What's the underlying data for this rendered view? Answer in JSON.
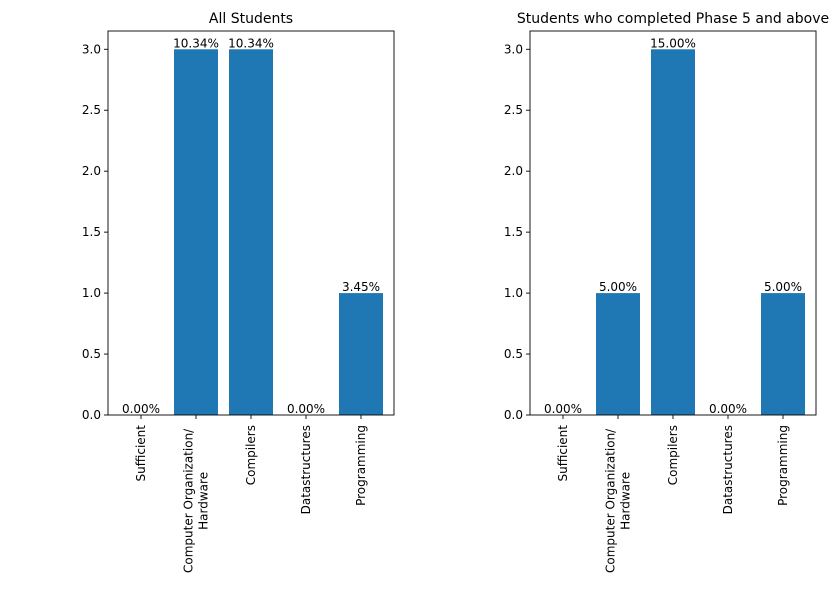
{
  "chart_data": [
    {
      "type": "bar",
      "title": "All Students",
      "categories": [
        "Sufficient",
        "Computer Organization/\nHardware",
        "Compilers",
        "Datastructures",
        "Programming"
      ],
      "values": [
        0,
        3,
        3,
        0,
        1
      ],
      "bar_labels": [
        "0.00%",
        "10.34%",
        "10.34%",
        "0.00%",
        "3.45%"
      ],
      "yticks": [
        "0.0",
        "0.5",
        "1.0",
        "1.5",
        "2.0",
        "2.5",
        "3.0"
      ],
      "ylim": [
        0,
        3.15
      ],
      "xlabel": "",
      "ylabel": "",
      "grid": false,
      "bar_color": "#1f77b4"
    },
    {
      "type": "bar",
      "title": "Students who completed Phase 5 and above",
      "categories": [
        "Sufficient",
        "Computer Organization/\nHardware",
        "Compilers",
        "Datastructures",
        "Programming"
      ],
      "values": [
        0,
        1,
        3,
        0,
        1
      ],
      "bar_labels": [
        "0.00%",
        "5.00%",
        "15.00%",
        "0.00%",
        "5.00%"
      ],
      "yticks": [
        "0.0",
        "0.5",
        "1.0",
        "1.5",
        "2.0",
        "2.5",
        "3.0"
      ],
      "ylim": [
        0,
        3.15
      ],
      "xlabel": "",
      "ylabel": "",
      "grid": false,
      "bar_color": "#1f77b4"
    }
  ]
}
